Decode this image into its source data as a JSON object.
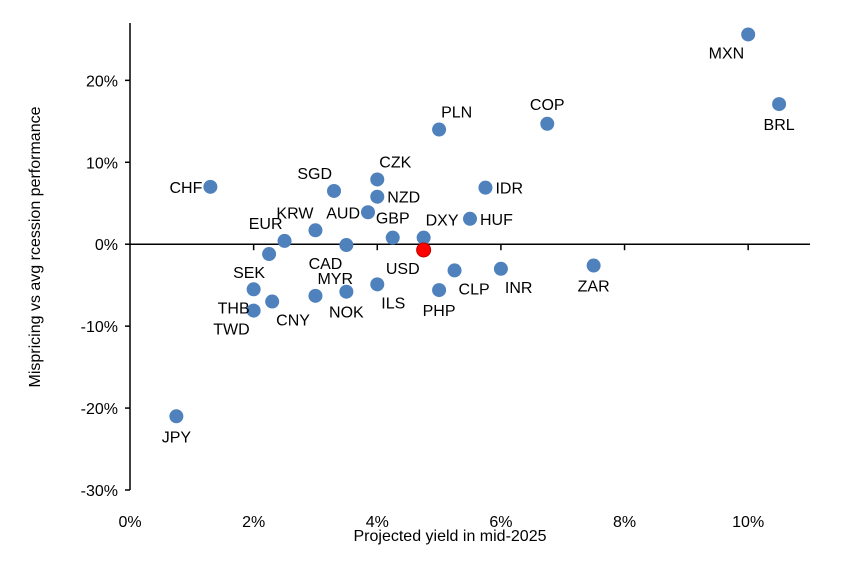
{
  "chart_data": {
    "type": "scatter",
    "xlabel": "Projected yield in mid-2025",
    "ylabel": "Mispricing vs avg rcession performance",
    "xlim": [
      0,
      11
    ],
    "ylim": [
      -30,
      27
    ],
    "x_ticks": [
      0,
      2,
      4,
      6,
      8,
      10
    ],
    "y_ticks": [
      20,
      10,
      0,
      -10,
      -20,
      -30
    ],
    "x_tick_labels": [
      "0%",
      "2%",
      "4%",
      "6%",
      "8%",
      "10%"
    ],
    "y_tick_labels": [
      "20%",
      "10%",
      "0%",
      "-10%",
      "-20%",
      "-30%"
    ],
    "grid": false,
    "point_color": "#4f81bd",
    "highlight_color": "#ff0000",
    "points": [
      {
        "label": "MXN",
        "x": 10.0,
        "y": 25.6,
        "label_pos": "below-left"
      },
      {
        "label": "BRL",
        "x": 10.5,
        "y": 17.1,
        "label_pos": "below"
      },
      {
        "label": "COP",
        "x": 6.75,
        "y": 14.7,
        "label_pos": "above"
      },
      {
        "label": "PLN",
        "x": 5.0,
        "y": 14.0,
        "label_pos": "above-right"
      },
      {
        "label": "CZK",
        "x": 4.0,
        "y": 7.9,
        "label_pos": "above-right"
      },
      {
        "label": "SGD",
        "x": 3.3,
        "y": 6.5,
        "label_pos": "above-left"
      },
      {
        "label": "NZD",
        "x": 4.0,
        "y": 5.8,
        "label_pos": "right"
      },
      {
        "label": "IDR",
        "x": 5.75,
        "y": 6.9,
        "label_pos": "right"
      },
      {
        "label": "CHF",
        "x": 1.3,
        "y": 7.0,
        "label_pos": "left"
      },
      {
        "label": "AUD",
        "x": 3.85,
        "y": 3.9,
        "label_pos": "left"
      },
      {
        "label": "KRW",
        "x": 3.0,
        "y": 1.7,
        "label_pos": "above-left"
      },
      {
        "label": "HUF",
        "x": 5.5,
        "y": 3.1,
        "label_pos": "right"
      },
      {
        "label": "EUR",
        "x": 2.5,
        "y": 0.4,
        "label_pos": "above-left"
      },
      {
        "label": "GBP",
        "x": 4.25,
        "y": 0.8,
        "label_pos": "above"
      },
      {
        "label": "DXY",
        "x": 4.75,
        "y": 0.8,
        "label_pos": "above-right"
      },
      {
        "label": "CAD",
        "x": 3.5,
        "y": -0.1,
        "label_pos": "below-left"
      },
      {
        "label": "USD",
        "x": 4.75,
        "y": -0.7,
        "label_pos": "below-left",
        "highlight": true
      },
      {
        "label": "SEK",
        "x": 2.25,
        "y": -1.2,
        "label_pos": "below-left"
      },
      {
        "label": "INR",
        "x": 6.0,
        "y": -3.0,
        "label_pos": "below-right"
      },
      {
        "label": "ZAR",
        "x": 7.5,
        "y": -2.6,
        "label_pos": "below"
      },
      {
        "label": "CLP",
        "x": 5.25,
        "y": -3.2,
        "label_pos": "below-right"
      },
      {
        "label": "MYR",
        "x": 3.0,
        "y": -6.3,
        "label_pos": "above-right"
      },
      {
        "label": "ILS",
        "x": 4.0,
        "y": -4.9,
        "label_pos": "below-right"
      },
      {
        "label": "PHP",
        "x": 5.0,
        "y": -5.6,
        "label_pos": "below"
      },
      {
        "label": "THB",
        "x": 2.0,
        "y": -5.5,
        "label_pos": "below-left"
      },
      {
        "label": "CNY",
        "x": 2.3,
        "y": -7.0,
        "label_pos": "below-right"
      },
      {
        "label": "NOK",
        "x": 3.5,
        "y": -5.8,
        "label_pos": "below"
      },
      {
        "label": "TWD",
        "x": 2.0,
        "y": -8.1,
        "label_pos": "below-left"
      },
      {
        "label": "JPY",
        "x": 0.75,
        "y": -21.0,
        "label_pos": "below"
      }
    ]
  }
}
